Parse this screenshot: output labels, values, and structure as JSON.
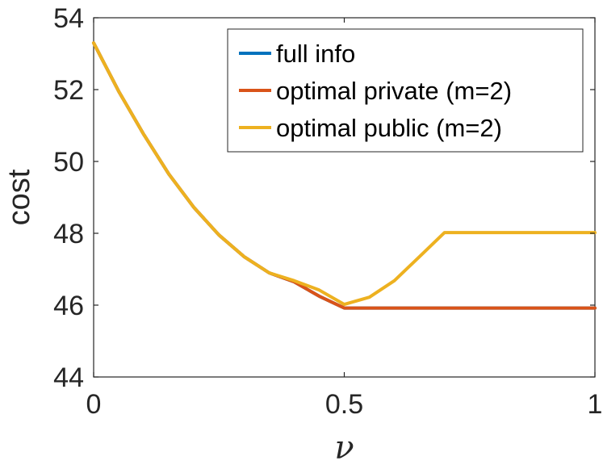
{
  "chart_data": {
    "type": "line",
    "xlabel": "ν",
    "ylabel": "cost",
    "xlim": [
      0,
      1
    ],
    "ylim": [
      44,
      54
    ],
    "xticks": [
      0,
      0.5,
      1
    ],
    "xtick_labels": [
      "0",
      "0.5",
      "1"
    ],
    "yticks": [
      44,
      46,
      48,
      50,
      52,
      54
    ],
    "ytick_labels": [
      "44",
      "46",
      "48",
      "50",
      "52",
      "54"
    ],
    "grid": false,
    "legend_position": "top-right",
    "series": [
      {
        "name": "full info",
        "color": "#0072BD",
        "x": [
          0,
          0.05,
          0.1,
          0.15,
          0.2,
          0.25,
          0.3,
          0.35,
          0.4,
          0.45,
          0.5,
          0.55,
          0.6,
          0.65,
          0.7,
          0.75,
          0.8,
          0.85,
          0.9,
          0.95,
          1
        ],
        "y": [
          53.3,
          51.95,
          50.75,
          49.65,
          48.72,
          47.95,
          47.35,
          46.9,
          46.65,
          46.25,
          45.92,
          45.92,
          45.92,
          45.92,
          45.92,
          45.92,
          45.92,
          45.92,
          45.92,
          45.92,
          45.92
        ]
      },
      {
        "name": "optimal private (m=2)",
        "color": "#D95319",
        "x": [
          0,
          0.05,
          0.1,
          0.15,
          0.2,
          0.25,
          0.3,
          0.35,
          0.4,
          0.45,
          0.5,
          0.55,
          0.6,
          0.65,
          0.7,
          0.75,
          0.8,
          0.85,
          0.9,
          0.95,
          1
        ],
        "y": [
          53.3,
          51.95,
          50.75,
          49.65,
          48.72,
          47.95,
          47.35,
          46.9,
          46.65,
          46.25,
          45.92,
          45.92,
          45.92,
          45.92,
          45.92,
          45.92,
          45.92,
          45.92,
          45.92,
          45.92,
          45.92
        ]
      },
      {
        "name": "optimal public (m=2)",
        "color": "#EDB120",
        "x": [
          0,
          0.05,
          0.1,
          0.15,
          0.2,
          0.25,
          0.3,
          0.35,
          0.4,
          0.45,
          0.5,
          0.55,
          0.6,
          0.65,
          0.7,
          0.75,
          0.8,
          0.85,
          0.9,
          0.95,
          1
        ],
        "y": [
          53.3,
          51.95,
          50.75,
          49.65,
          48.72,
          47.95,
          47.35,
          46.9,
          46.68,
          46.42,
          46.02,
          46.22,
          46.68,
          47.35,
          48.02,
          48.02,
          48.02,
          48.02,
          48.02,
          48.02,
          48.02
        ]
      }
    ]
  }
}
